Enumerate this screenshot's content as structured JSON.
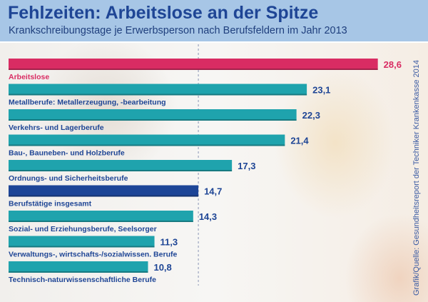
{
  "header": {
    "title": "Fehlzeiten: Arbeitslose an der Spitze",
    "subtitle": "Krankschreibungstage je Erwerbsperson nach Berufsfeldern im Jahr 2013"
  },
  "source": "Grafik/Quelle: Gesundheitsreport der Techniker Krankenkasse 2014",
  "colors": {
    "highlight": "#d92c63",
    "default": "#1fa3ad",
    "average": "#1d4597",
    "label": "#1e4595",
    "header_bg": "#a7c6e6"
  },
  "chart_data": {
    "type": "bar",
    "orientation": "horizontal",
    "title": "Fehlzeiten: Arbeitslose an der Spitze",
    "subtitle": "Krankschreibungstage je Erwerbsperson nach Berufsfeldern im Jahr 2013",
    "xlabel": "",
    "ylabel": "",
    "xlim": [
      0,
      30
    ],
    "reference_line": {
      "value": 14.7,
      "style": "dashed",
      "label": "Berufstätige insgesamt"
    },
    "categories": [
      "Arbeitslose",
      "Metallberufe: Metallerzeugung, -bearbeitung",
      "Verkehrs- und Lagerberufe",
      "Bau-, Bauneben- und Holzberufe",
      "Ordnungs- und Sicherheitsberufe",
      "Berufstätige insgesamt",
      "Sozial- und Erziehungsberufe, Seelsorger",
      "Verwaltungs-, wirtschafts-/sozialwissen. Berufe",
      "Technisch-naturwissenschaftliche Berufe"
    ],
    "values": [
      28.6,
      23.1,
      22.3,
      21.4,
      17.3,
      14.7,
      14.3,
      11.3,
      10.8
    ],
    "value_labels": [
      "28,6",
      "23,1",
      "22,3",
      "21,4",
      "17,3",
      "14,7",
      "14,3",
      "11,3",
      "10,8"
    ],
    "bar_types": [
      "highlight",
      "default",
      "default",
      "default",
      "default",
      "average",
      "default",
      "default",
      "default"
    ],
    "grid": false,
    "legend": "none"
  }
}
